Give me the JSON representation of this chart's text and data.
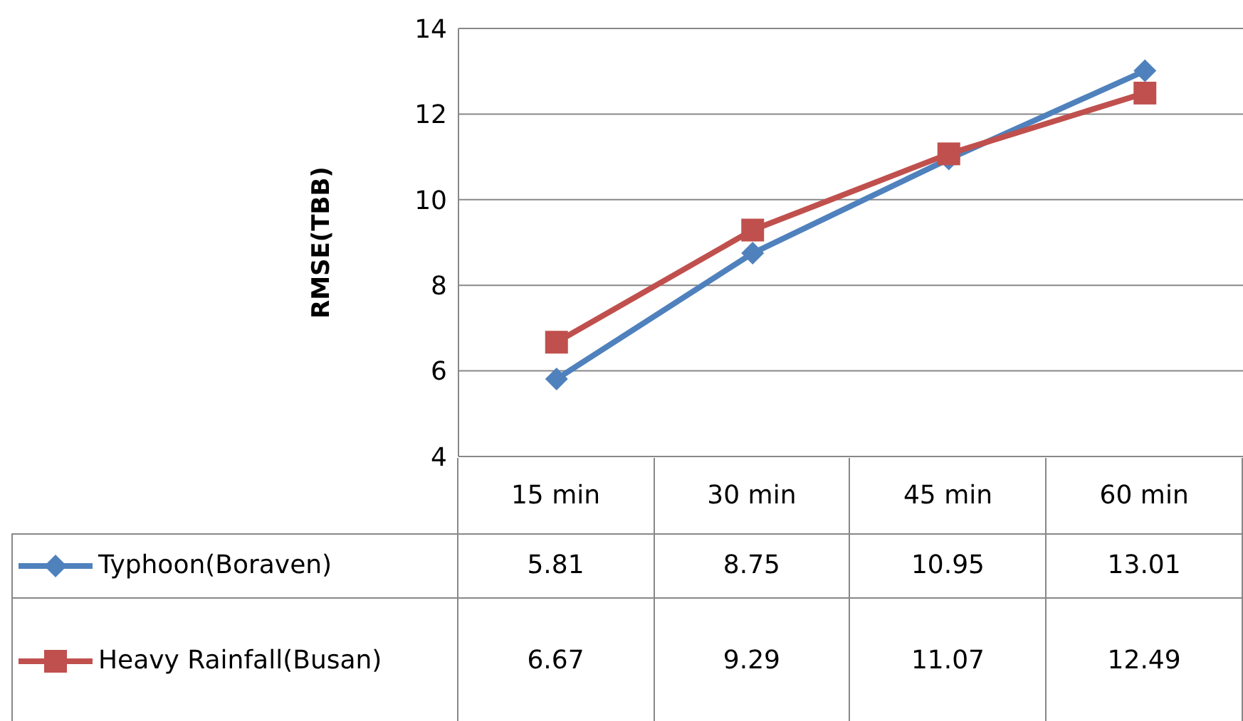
{
  "chart_data": {
    "type": "line",
    "ylabel": "RMSE(TBB)",
    "categories": [
      "15 min",
      "30 min",
      "45 min",
      "60 min"
    ],
    "series": [
      {
        "name": "Typhoon(Boraven)",
        "color": "#4f81bd",
        "marker": "diamond",
        "values": [
          5.81,
          8.75,
          10.95,
          13.01
        ]
      },
      {
        "name": "Heavy Rainfall(Busan)",
        "color": "#c0504d",
        "marker": "square",
        "values": [
          6.67,
          9.29,
          11.07,
          12.49
        ]
      }
    ],
    "ylim": [
      4,
      14
    ],
    "yticks": [
      4,
      6,
      8,
      10,
      12,
      14
    ],
    "grid": "y",
    "legend": "bottom left",
    "data_labels": true
  }
}
